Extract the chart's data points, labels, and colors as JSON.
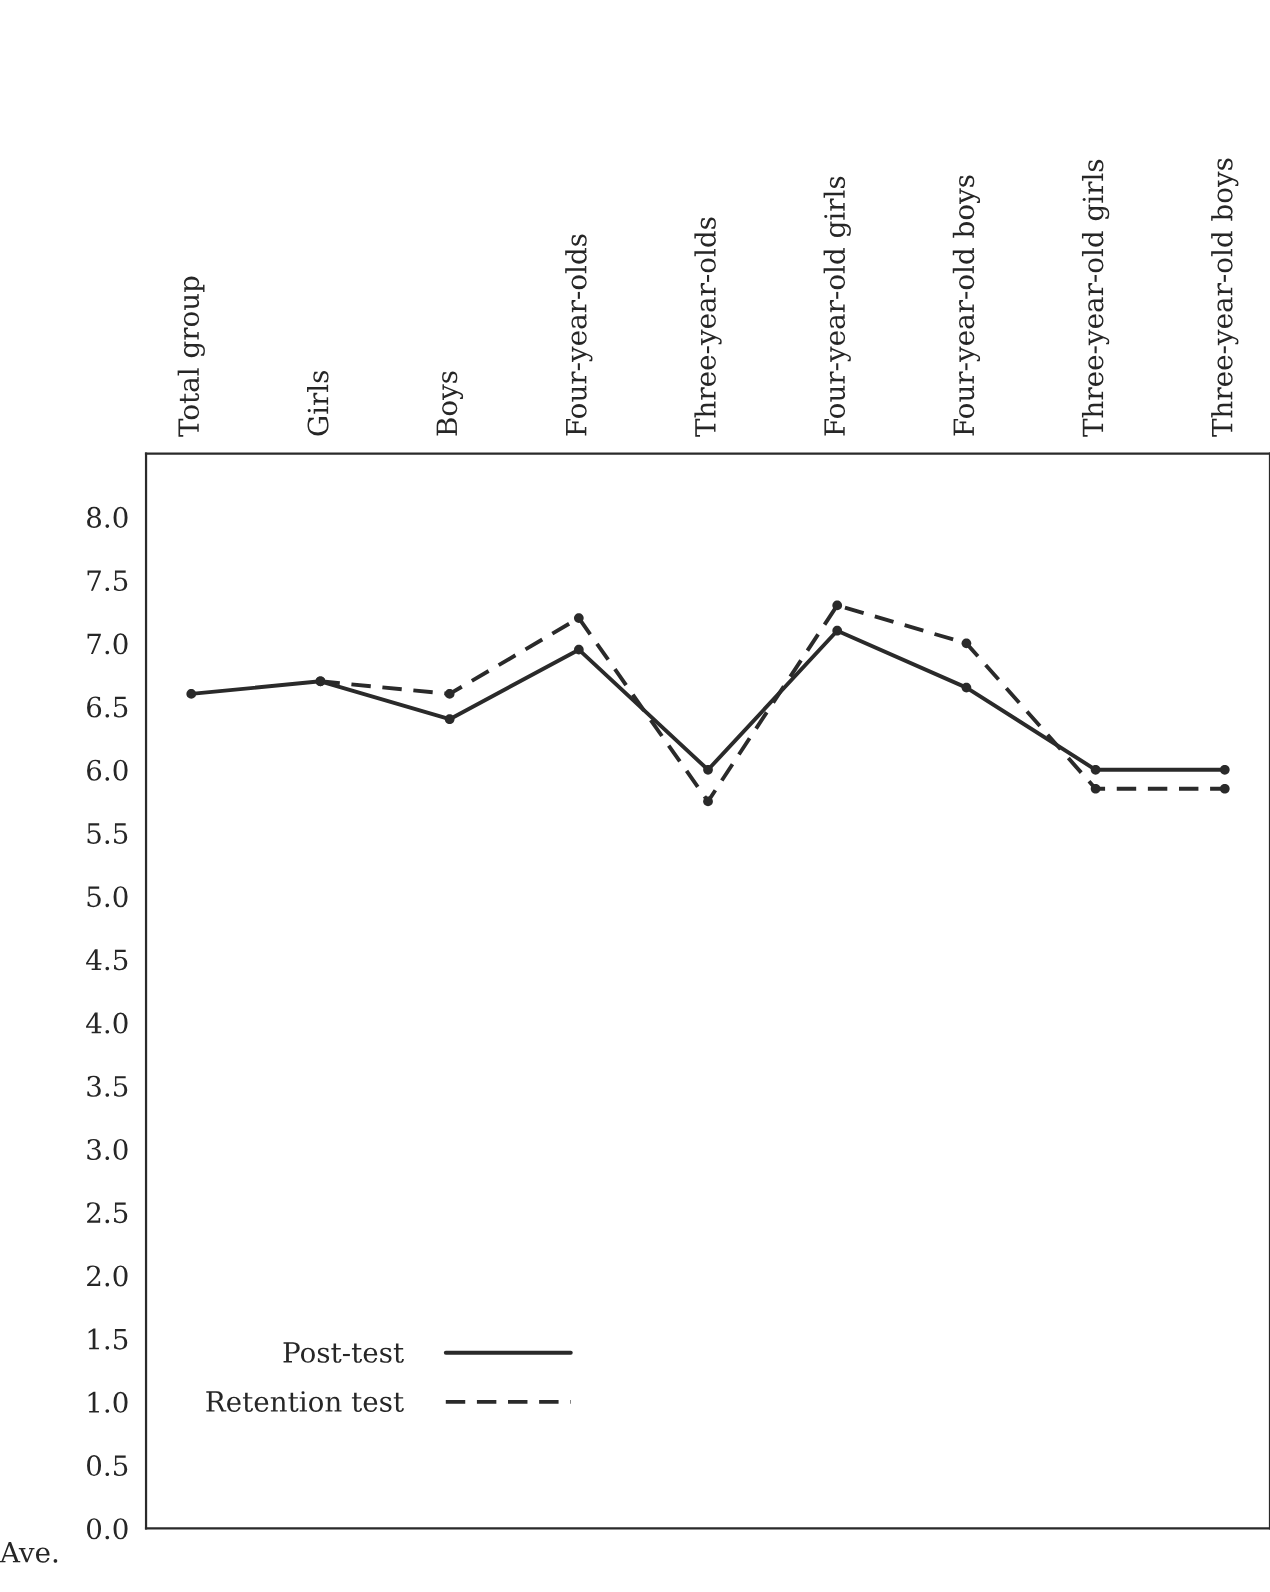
{
  "chart_data": {
    "type": "line",
    "categories": [
      "Total group",
      "Girls",
      "Boys",
      "Four-year-olds",
      "Three-year-olds",
      "Four-year-old girls",
      "Four-year-old boys",
      "Three-year-old girls",
      "Three-year-old boys"
    ],
    "series": [
      {
        "name": "Post-test",
        "color": "#2a2a2a",
        "line_style": "solid",
        "values": [
          6.6,
          6.7,
          6.4,
          6.95,
          6.0,
          7.1,
          6.65,
          6.0,
          6.0
        ]
      },
      {
        "name": "Retention test",
        "color": "#2a2a2a",
        "line_style": "dashed",
        "values": [
          null,
          6.7,
          6.6,
          7.2,
          5.75,
          7.3,
          7.0,
          5.85,
          5.85
        ]
      }
    ],
    "ylabel": "Ave.",
    "ylim": [
      0,
      8.5
    ],
    "yticks": [
      {
        "value": 0,
        "label": "0.0"
      },
      0.5,
      {
        "value": 1,
        "label": "1.0"
      },
      1.5,
      {
        "value": 2,
        "label": "2.0"
      },
      2.5,
      {
        "value": 3,
        "label": "3.0"
      },
      3.5,
      {
        "value": 4,
        "label": "4.0"
      },
      4.5,
      {
        "value": 5,
        "label": "5.0"
      },
      5.5,
      {
        "value": 6,
        "label": "6.0"
      },
      6.5,
      {
        "value": 7,
        "label": "7.0"
      },
      7.5,
      {
        "value": 8,
        "label": "8.0"
      }
    ],
    "marker": "circle",
    "grid": false,
    "legend": "bottom left"
  }
}
